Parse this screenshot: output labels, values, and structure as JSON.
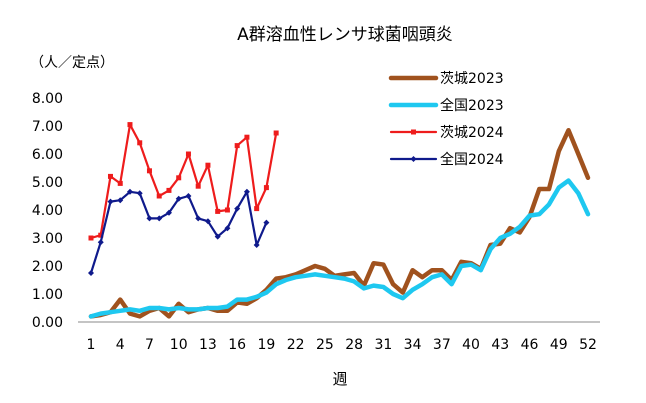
{
  "chart_data": {
    "type": "line",
    "title": "A群溶血性レンサ球菌咽頭炎",
    "ylabel": "（人／定点）",
    "xlabel": "週",
    "ylim": [
      0,
      8
    ],
    "yticks": [
      "0.00",
      "1.00",
      "2.00",
      "3.00",
      "4.00",
      "5.00",
      "6.00",
      "7.00",
      "8.00"
    ],
    "xlim": [
      1,
      52
    ],
    "xticks": [
      1,
      4,
      7,
      10,
      13,
      16,
      19,
      22,
      25,
      28,
      31,
      34,
      37,
      40,
      43,
      46,
      49,
      52
    ],
    "legend_position": "top-right",
    "series": [
      {
        "name": "茨城2023",
        "color": "#a0521e",
        "marker": "none",
        "values": [
          0.2,
          0.25,
          0.35,
          0.8,
          0.3,
          0.2,
          0.4,
          0.5,
          0.2,
          0.65,
          0.35,
          0.45,
          0.5,
          0.4,
          0.4,
          0.7,
          0.65,
          0.85,
          1.15,
          1.55,
          1.6,
          1.7,
          1.85,
          2.0,
          1.9,
          1.65,
          1.7,
          1.75,
          1.3,
          2.1,
          2.05,
          1.35,
          1.05,
          1.85,
          1.6,
          1.85,
          1.85,
          1.5,
          2.15,
          2.1,
          1.9,
          2.75,
          2.8,
          3.35,
          3.2,
          3.75,
          4.75,
          4.75,
          6.1,
          6.85,
          6.0,
          5.15
        ]
      },
      {
        "name": "全国2023",
        "color": "#1ec8f0",
        "marker": "none",
        "values": [
          0.2,
          0.3,
          0.35,
          0.4,
          0.45,
          0.4,
          0.5,
          0.5,
          0.45,
          0.5,
          0.45,
          0.45,
          0.5,
          0.5,
          0.55,
          0.8,
          0.8,
          0.9,
          1.05,
          1.35,
          1.5,
          1.6,
          1.65,
          1.7,
          1.65,
          1.6,
          1.55,
          1.45,
          1.2,
          1.3,
          1.25,
          1.0,
          0.85,
          1.15,
          1.35,
          1.6,
          1.7,
          1.35,
          2.0,
          2.05,
          1.85,
          2.6,
          3.0,
          3.15,
          3.4,
          3.8,
          3.85,
          4.2,
          4.8,
          5.05,
          4.6,
          3.85
        ]
      },
      {
        "name": "茨城2024",
        "color": "#ee1c1c",
        "marker": "square",
        "values": [
          3.0,
          3.1,
          5.2,
          4.95,
          7.05,
          6.4,
          5.4,
          4.5,
          4.7,
          5.15,
          6.0,
          4.85,
          5.6,
          3.95,
          4.0,
          6.3,
          6.6,
          4.05,
          4.8,
          6.75
        ]
      },
      {
        "name": "全国2024",
        "color": "#0f1a8c",
        "marker": "diamond",
        "values": [
          1.75,
          2.85,
          4.3,
          4.35,
          4.65,
          4.6,
          3.7,
          3.7,
          3.9,
          4.4,
          4.5,
          3.7,
          3.6,
          3.05,
          3.35,
          4.05,
          4.65,
          2.75,
          3.55
        ]
      }
    ]
  }
}
